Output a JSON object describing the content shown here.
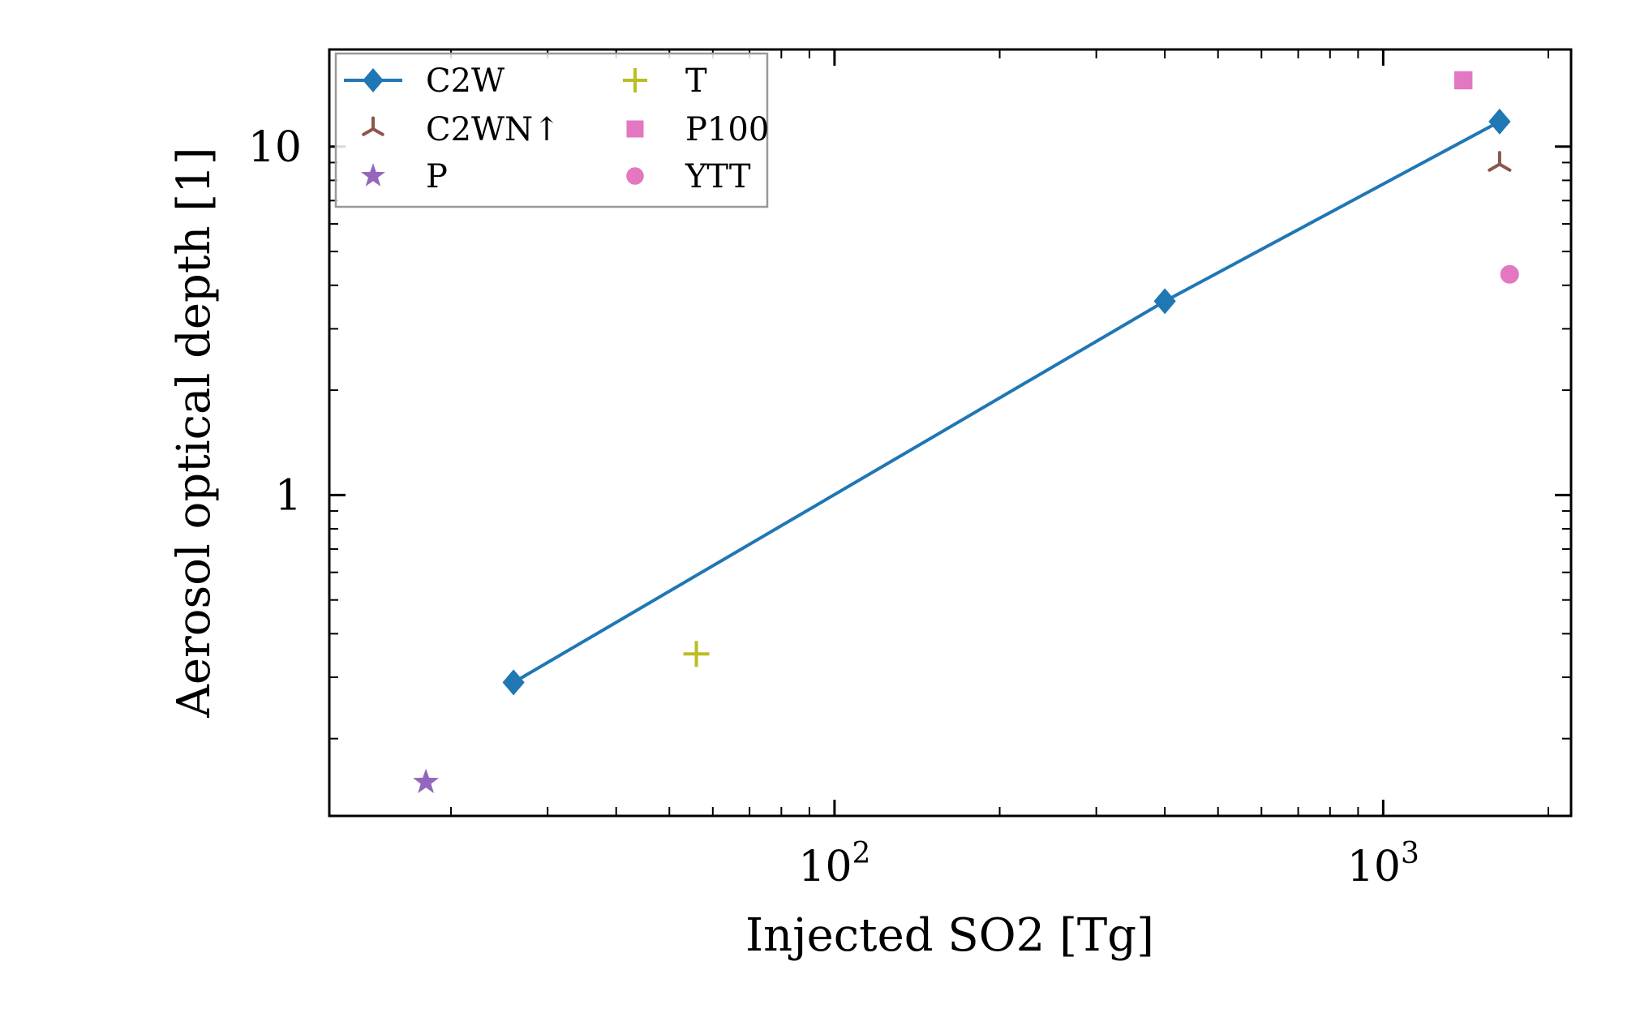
{
  "chart_data": {
    "type": "scatter",
    "title": "",
    "xlabel": "Injected SO2 [Tg]",
    "ylabel": "Aerosol optical depth [1]",
    "xscale": "log",
    "yscale": "log",
    "xlim": [
      12,
      2200
    ],
    "ylim": [
      0.12,
      19
    ],
    "x_ticks": [
      {
        "value": 100,
        "base": "10",
        "exp": "2"
      },
      {
        "value": 1000,
        "base": "10",
        "exp": "3"
      }
    ],
    "y_ticks": [
      {
        "value": 1,
        "label": "1"
      },
      {
        "value": 10,
        "label": "10"
      }
    ],
    "legend": {
      "placement": "top-left",
      "columns": 2
    },
    "grid": false,
    "series": [
      {
        "name": "C2W",
        "marker": "diamond",
        "color": "#1f77b4",
        "line": true,
        "points": [
          {
            "x": 26,
            "y": 0.29
          },
          {
            "x": 400,
            "y": 3.6
          },
          {
            "x": 1630,
            "y": 11.8
          }
        ]
      },
      {
        "name": "C2WN↑",
        "marker": "tri_down",
        "color": "#8c564b",
        "line": false,
        "points": [
          {
            "x": 1630,
            "y": 8.9
          }
        ]
      },
      {
        "name": "P",
        "marker": "star",
        "color": "#9467bd",
        "line": false,
        "points": [
          {
            "x": 18,
            "y": 0.15
          }
        ]
      },
      {
        "name": "T",
        "marker": "plus",
        "color": "#bcbd22",
        "line": false,
        "points": [
          {
            "x": 56,
            "y": 0.35
          }
        ]
      },
      {
        "name": "P100",
        "marker": "square",
        "color": "#e377c2",
        "line": false,
        "points": [
          {
            "x": 1400,
            "y": 15.5
          }
        ]
      },
      {
        "name": "YTT",
        "marker": "circle",
        "color": "#e377c2",
        "line": false,
        "points": [
          {
            "x": 1700,
            "y": 4.3
          }
        ]
      }
    ]
  }
}
